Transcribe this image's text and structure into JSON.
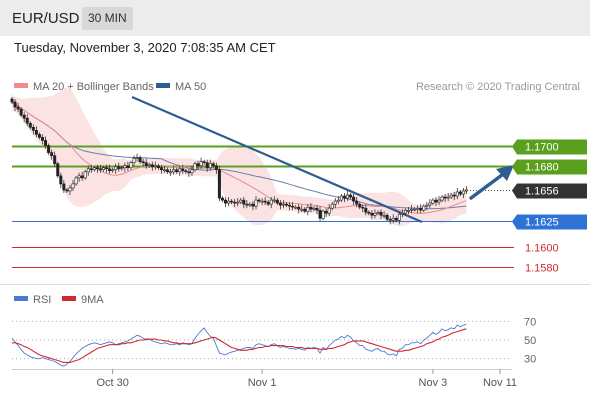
{
  "header": {
    "symbol": "EUR/USD",
    "timeframe": "30 MIN",
    "datetime": "Tuesday, November 3, 2020 7:08:35 AM CET"
  },
  "chart_data": [
    {
      "type": "candlestick",
      "ylim": [
        1.1565,
        1.1745
      ],
      "x_ticks": [
        {
          "label": "Oct 30",
          "i": 33
        },
        {
          "label": "Nov 1",
          "i": 82
        },
        {
          "label": "Nov 3",
          "i": 138
        },
        {
          "label": "Nov 11",
          "i": 160
        }
      ],
      "legend": [
        {
          "label": "MA 20 + Bollinger Bands",
          "color": "#f28c8c"
        },
        {
          "label": "MA 50",
          "color": "#2e5d91"
        }
      ],
      "watermark": "Research © 2020 Trading Central",
      "levels": [
        {
          "value": 1.17,
          "label": "1.1700",
          "color": "#5aa01e",
          "style": "resistance"
        },
        {
          "value": 1.168,
          "label": "1.1680",
          "color": "#5aa01e",
          "style": "resistance"
        },
        {
          "value": 1.1656,
          "label": "1.1656",
          "color": "#333333",
          "style": "last"
        },
        {
          "value": 1.1625,
          "label": "1.1625",
          "color": "#2f72d6",
          "style": "pivot"
        },
        {
          "value": 1.16,
          "label": "1.1600",
          "color": "#d12a2a",
          "style": "support"
        },
        {
          "value": 1.158,
          "label": "1.1580",
          "color": "#d12a2a",
          "style": "support"
        }
      ],
      "close": [
        1.1743,
        1.1738,
        1.1736,
        1.173,
        1.1727,
        1.1722,
        1.1718,
        1.1715,
        1.1711,
        1.1708,
        1.1705,
        1.17,
        1.1693,
        1.169,
        1.1682,
        1.167,
        1.1662,
        1.1656,
        1.1655,
        1.1658,
        1.1662,
        1.1668,
        1.167,
        1.1668,
        1.1674,
        1.1677,
        1.1676,
        1.1678,
        1.1677,
        1.1676,
        1.1678,
        1.1677,
        1.1675,
        1.1676,
        1.1679,
        1.1677,
        1.1678,
        1.168,
        1.1678,
        1.1683,
        1.1687,
        1.1688,
        1.1684,
        1.1683,
        1.168,
        1.1681,
        1.1679,
        1.168,
        1.1678,
        1.1676,
        1.1676,
        1.1674,
        1.1674,
        1.1676,
        1.1674,
        1.1677,
        1.1675,
        1.1674,
        1.1673,
        1.1676,
        1.1682,
        1.168,
        1.1684,
        1.1683,
        1.1678,
        1.1682,
        1.168,
        1.1676,
        1.1648,
        1.1646,
        1.1643,
        1.1645,
        1.1644,
        1.1643,
        1.1644,
        1.1646,
        1.1642,
        1.1641,
        1.1642,
        1.164,
        1.1646,
        1.1645,
        1.1645,
        1.1644,
        1.1642,
        1.1646,
        1.1646,
        1.1643,
        1.1641,
        1.1642,
        1.1641,
        1.164,
        1.1639,
        1.1639,
        1.1637,
        1.1637,
        1.1635,
        1.1639,
        1.1637,
        1.1638,
        1.1636,
        1.1628,
        1.1635,
        1.1633,
        1.1638,
        1.1642,
        1.1645,
        1.1646,
        1.165,
        1.1648,
        1.1651,
        1.1649,
        1.1645,
        1.1642,
        1.1639,
        1.1638,
        1.1634,
        1.1633,
        1.1631,
        1.1633,
        1.1634,
        1.1631,
        1.1631,
        1.1627,
        1.1626,
        1.1628,
        1.1626,
        1.1632,
        1.1633,
        1.1636,
        1.1636,
        1.1637,
        1.1637,
        1.1638,
        1.1636,
        1.164,
        1.1641,
        1.1643,
        1.1646,
        1.1644,
        1.1646,
        1.1649,
        1.1648,
        1.1649,
        1.1651,
        1.165,
        1.1654,
        1.1652,
        1.1655,
        1.1656
      ]
    },
    {
      "type": "line",
      "ylim": [
        20,
        80
      ],
      "y_ticks": [
        70,
        50,
        30
      ],
      "legend": [
        {
          "label": "RSI",
          "color": "#4a7bd0"
        },
        {
          "label": "9MA",
          "color": "#d12a2a"
        }
      ],
      "series": [
        {
          "name": "RSI",
          "values": [
            52,
            48,
            44,
            40,
            36,
            34,
            32,
            31,
            30,
            30,
            31,
            30,
            29,
            28,
            27,
            25,
            23,
            22,
            24,
            27,
            31,
            35,
            38,
            41,
            43,
            45,
            46,
            47,
            46,
            45,
            46,
            47,
            48,
            47,
            45,
            46,
            47,
            48,
            49,
            51,
            53,
            55,
            54,
            52,
            50,
            51,
            49,
            48,
            47,
            46,
            47,
            46,
            45,
            45,
            46,
            45,
            47,
            46,
            45,
            46,
            52,
            56,
            60,
            63,
            58,
            54,
            52,
            44,
            36,
            35,
            34,
            36,
            37,
            38,
            39,
            40,
            41,
            42,
            42,
            41,
            45,
            46,
            45,
            44,
            43,
            45,
            46,
            44,
            42,
            43,
            42,
            41,
            41,
            40,
            41,
            40,
            39,
            42,
            41,
            42,
            41,
            36,
            42,
            40,
            44,
            47,
            50,
            51,
            54,
            52,
            55,
            53,
            49,
            47,
            44,
            44,
            40,
            39,
            38,
            40,
            41,
            38,
            38,
            35,
            34,
            35,
            33,
            40,
            41,
            45,
            45,
            47,
            47,
            48,
            46,
            50,
            52,
            55,
            58,
            56,
            58,
            62,
            60,
            61,
            63,
            62,
            66,
            64,
            66,
            67
          ]
        },
        {
          "name": "9MA",
          "values": [
            47,
            47,
            46,
            45,
            43,
            42,
            40,
            38,
            36,
            34,
            33,
            32,
            31,
            30,
            29,
            28,
            27,
            26,
            26,
            26,
            27,
            28,
            29,
            31,
            33,
            35,
            37,
            39,
            41,
            42,
            43,
            44,
            45,
            45,
            45,
            45,
            46,
            46,
            47,
            47,
            48,
            49,
            50,
            50,
            51,
            51,
            51,
            51,
            50,
            50,
            49,
            49,
            48,
            47,
            47,
            46,
            46,
            46,
            46,
            46,
            47,
            48,
            49,
            50,
            51,
            52,
            53,
            52,
            50,
            48,
            46,
            44,
            42,
            41,
            40,
            39,
            39,
            39,
            40,
            40,
            41,
            42,
            42,
            43,
            43,
            44,
            44,
            44,
            44,
            44,
            43,
            43,
            43,
            42,
            42,
            42,
            41,
            41,
            41,
            41,
            41,
            40,
            40,
            40,
            41,
            41,
            42,
            43,
            44,
            45,
            47,
            48,
            49,
            49,
            49,
            49,
            48,
            47,
            46,
            45,
            44,
            43,
            42,
            41,
            40,
            39,
            38,
            38,
            38,
            39,
            39,
            40,
            41,
            42,
            43,
            44,
            46,
            47,
            48,
            50,
            51,
            53,
            54,
            55,
            57,
            58,
            59,
            60,
            61,
            62
          ]
        }
      ]
    }
  ]
}
